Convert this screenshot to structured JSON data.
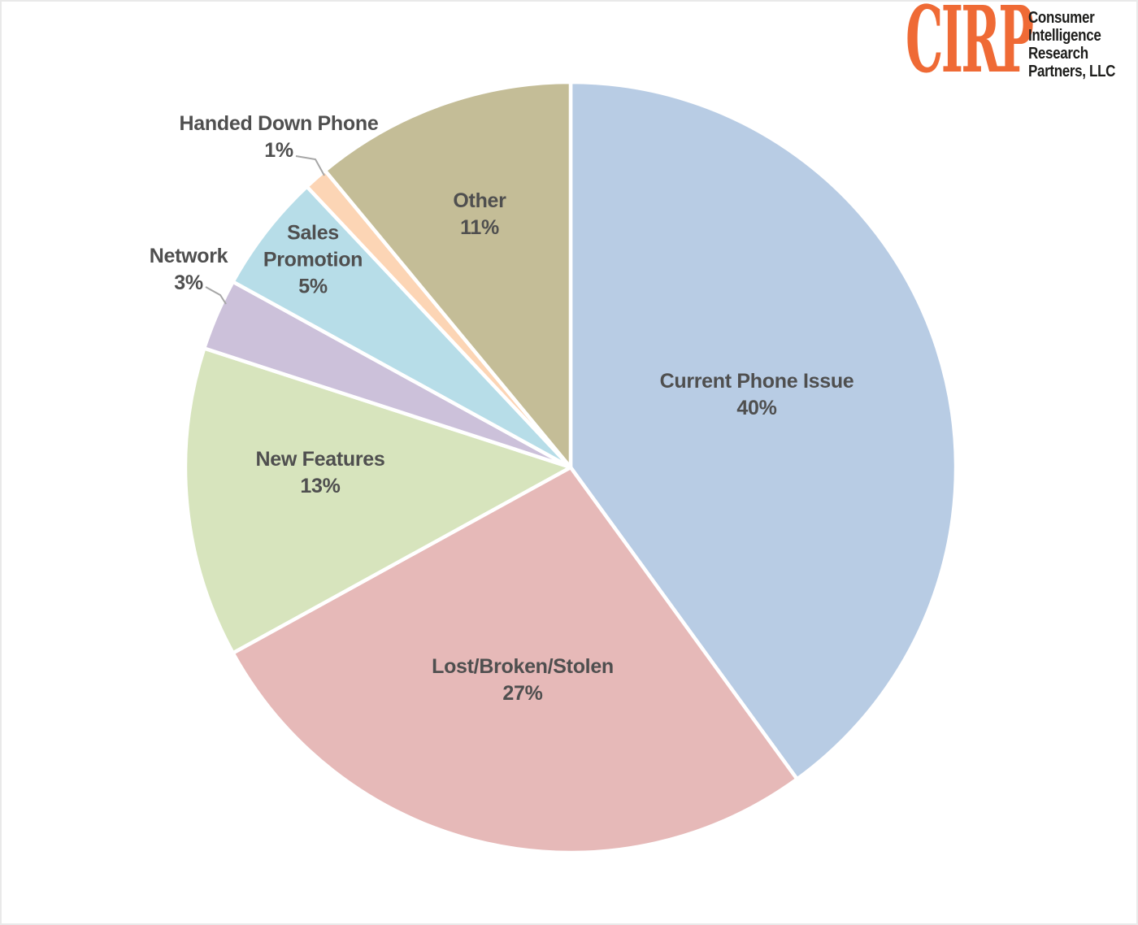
{
  "logo": {
    "acronym": "CIRP",
    "name_lines": [
      "Consumer",
      "Intelligence",
      "Research",
      "Partners, LLC"
    ]
  },
  "theme": {
    "logo_orange": "#ef6a35",
    "logo_text_black": "#1d1d1b",
    "label_color": "#4f4f4f",
    "leader_line_color": "#a6a6a6",
    "slice_border_color": "#ffffff",
    "background": "#ffffff"
  },
  "chart_data": {
    "type": "pie",
    "title": "",
    "legend": "none",
    "direction": "clockwise",
    "start_angle_deg": 0,
    "total": 100,
    "slices": [
      {
        "label": "Current Phone Issue",
        "value": 40,
        "pct": "40%",
        "color": "#b8cce4",
        "label_position": "inside"
      },
      {
        "label": "Lost/Broken/Stolen",
        "value": 27,
        "pct": "27%",
        "color": "#e6b9b8",
        "label_position": "inside"
      },
      {
        "label": "New Features",
        "value": 13,
        "pct": "13%",
        "color": "#d7e4bd",
        "label_position": "inside"
      },
      {
        "label": "Network",
        "value": 3,
        "pct": "3%",
        "color": "#ccc1da",
        "label_position": "outside"
      },
      {
        "label": "Sales Promotion",
        "value": 5,
        "pct": "5%",
        "color": "#b7dde8",
        "label_position": "inside"
      },
      {
        "label": "Handed Down Phone",
        "value": 1,
        "pct": "1%",
        "color": "#fcd5b5",
        "label_position": "outside"
      },
      {
        "label": "Other",
        "value": 11,
        "pct": "11%",
        "color": "#c4bd97",
        "label_position": "inside"
      }
    ]
  }
}
